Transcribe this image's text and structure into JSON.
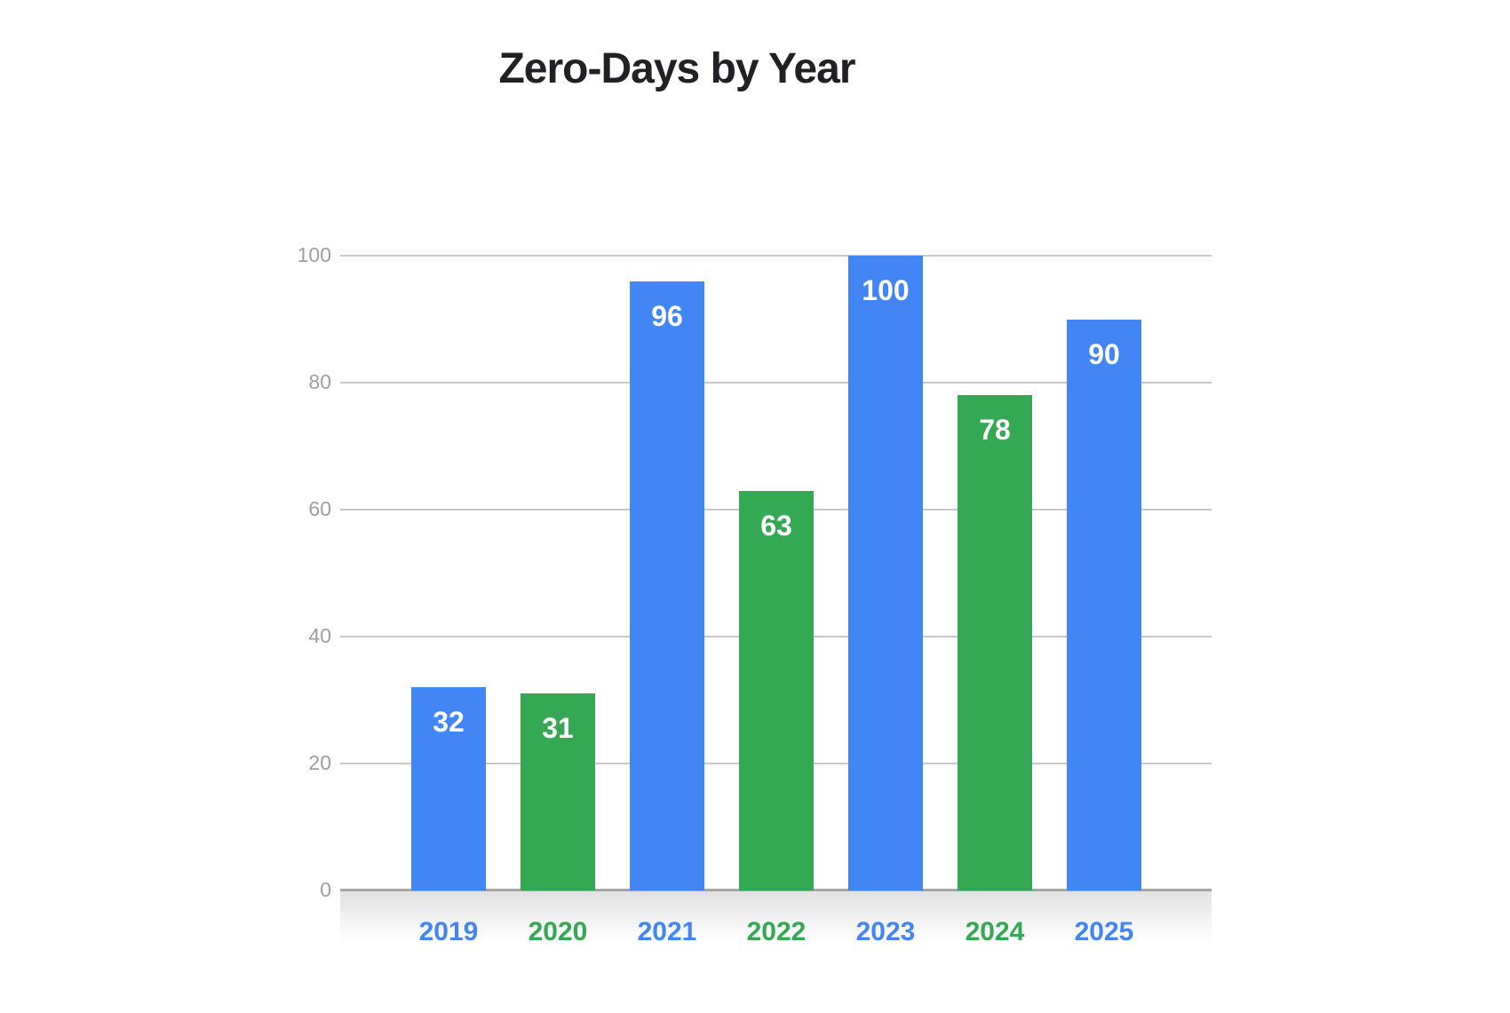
{
  "chart_data": {
    "type": "bar",
    "title": "Zero-Days by Year",
    "categories": [
      "2019",
      "2020",
      "2021",
      "2022",
      "2023",
      "2024",
      "2025"
    ],
    "values": [
      32,
      31,
      96,
      63,
      100,
      78,
      90
    ],
    "bar_colors": [
      "#4285F4",
      "#34A853",
      "#4285F4",
      "#34A853",
      "#4285F4",
      "#34A853",
      "#4285F4"
    ],
    "value_labels": [
      "32",
      "31",
      "96",
      "63",
      "100",
      "78",
      "90"
    ],
    "value_label_color": "#ffffff",
    "xlabel": "",
    "ylabel": "",
    "y_ticks": [
      0,
      20,
      40,
      60,
      80,
      100
    ],
    "ylim": [
      0,
      100
    ],
    "grid": "horizontal",
    "legend": "none",
    "colors": {
      "title": "#202124",
      "tick_label": "#9aa0a6",
      "gridline": "#c8c8c8",
      "axis_line": "#a6a6a6",
      "blue": "#4285F4",
      "green": "#34A853",
      "background": "#ffffff"
    }
  }
}
